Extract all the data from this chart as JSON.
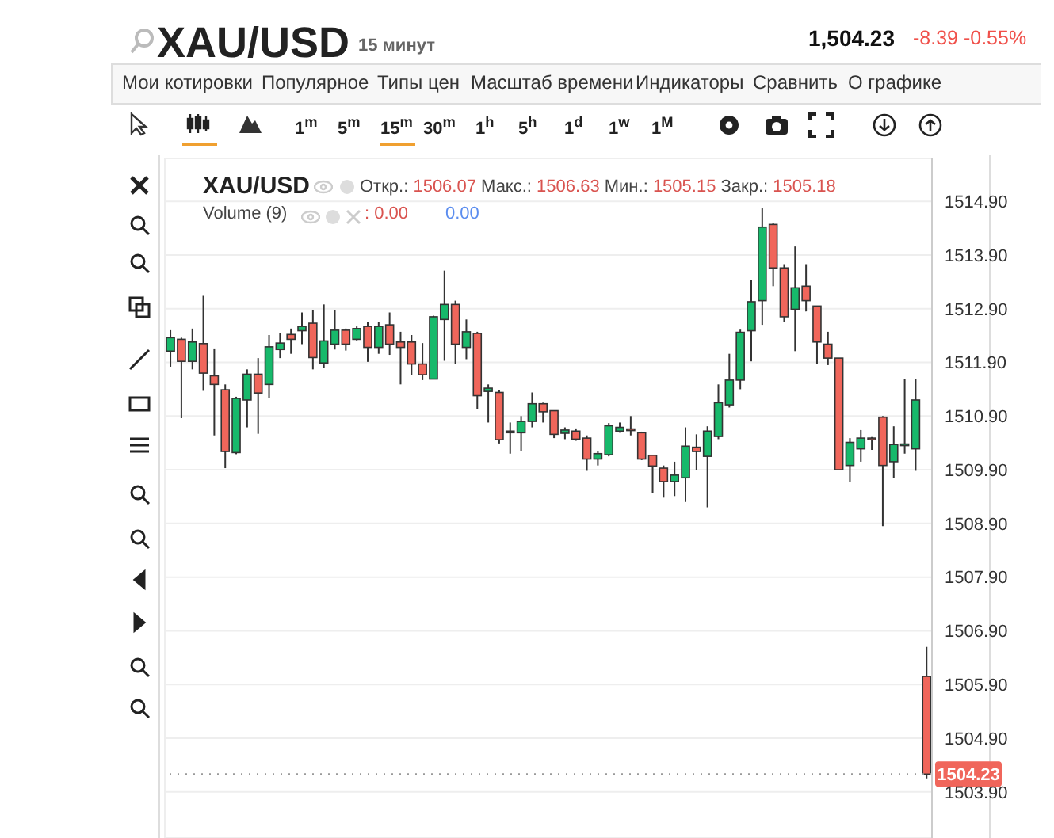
{
  "chart_data": {
    "type": "candlestick",
    "title": "XAU/USD",
    "subtitle": "15 минут",
    "annotations": [
      "1,504.23",
      "-8.39 -0.55%",
      "Мои котировки",
      "Популярное",
      "Типы цен",
      "Масштаб времени",
      "Индикаторы",
      "Сравнить",
      "О графике",
      "1$^{m}$",
      "5$^{m}$",
      "15$^{m}$",
      "30$^{m}$",
      "1$^{h}$",
      "5$^{h}$",
      "1$^{d}$",
      "1$^{w}$",
      "1$^{M}$",
      "XAU/USD",
      "Откр.: 1506.07 Макс.: 1506.63 Мин.: 1505.15 Закр.: 1505.18",
      "Volume (9)",
      ": 0.00",
      "0.00"
    ],
    "categories": [
      null,
      null,
      null,
      null,
      null,
      null,
      null,
      null,
      null,
      null,
      null,
      null,
      null,
      null,
      null,
      null,
      null,
      null,
      null,
      null,
      null,
      null,
      null,
      null,
      null,
      null,
      null,
      null,
      null,
      null,
      null,
      null,
      null,
      null,
      null,
      null,
      null,
      null,
      null,
      null,
      null,
      null,
      null,
      null,
      null,
      null,
      null,
      null,
      null,
      null,
      null,
      null,
      null,
      null,
      null,
      null,
      null,
      null,
      null,
      null,
      null,
      null,
      null,
      null,
      null,
      null,
      null,
      null,
      null,
      null
    ],
    "ohlc": [
      [
        1512.11,
        1512.5,
        1511.82,
        1512.36
      ],
      [
        1512.33,
        1512.36,
        1510.86,
        1511.92
      ],
      [
        1511.92,
        1512.53,
        1511.77,
        1512.28
      ],
      [
        1512.25,
        1513.14,
        1511.37,
        1511.7
      ],
      [
        1511.65,
        1512.16,
        1510.54,
        1511.49
      ],
      [
        1511.39,
        1511.49,
        1509.93,
        1510.24
      ],
      [
        1510.22,
        1511.26,
        1510.19,
        1511.23
      ],
      [
        1511.2,
        1511.77,
        1510.69,
        1511.68
      ],
      [
        1511.68,
        1511.98,
        1510.57,
        1511.33
      ],
      [
        1511.49,
        1512.41,
        1511.23,
        1512.19
      ],
      [
        1512.14,
        1512.44,
        1511.98,
        1512.26
      ],
      [
        1512.42,
        1512.53,
        1512.06,
        1512.33
      ],
      [
        1512.49,
        1512.83,
        1512.24,
        1512.57
      ],
      [
        1512.63,
        1512.88,
        1511.77,
        1511.99
      ],
      [
        1511.89,
        1512.98,
        1511.79,
        1512.3
      ],
      [
        1512.24,
        1512.87,
        1512.14,
        1512.5
      ],
      [
        1512.5,
        1512.53,
        1512.12,
        1512.24
      ],
      [
        1512.33,
        1512.57,
        1512.31,
        1512.53
      ],
      [
        1512.57,
        1512.65,
        1511.91,
        1512.18
      ],
      [
        1512.18,
        1512.65,
        1512.06,
        1512.57
      ],
      [
        1512.6,
        1512.83,
        1512.04,
        1512.24
      ],
      [
        1512.28,
        1512.47,
        1511.49,
        1512.18
      ],
      [
        1512.28,
        1512.41,
        1511.67,
        1511.87
      ],
      [
        1511.87,
        1512.26,
        1511.57,
        1511.67
      ],
      [
        1511.59,
        1512.77,
        1511.59,
        1512.75
      ],
      [
        1512.7,
        1513.61,
        1511.93,
        1512.98
      ],
      [
        1512.98,
        1513.05,
        1511.87,
        1512.24
      ],
      [
        1512.18,
        1512.7,
        1511.96,
        1512.47
      ],
      [
        1512.44,
        1512.47,
        1511.03,
        1511.28
      ],
      [
        1511.36,
        1511.49,
        1510.78,
        1511.42
      ],
      [
        1511.34,
        1511.38,
        1510.39,
        1510.46
      ],
      [
        1510.62,
        1510.78,
        1510.2,
        1510.6
      ],
      [
        1510.59,
        1510.9,
        1510.24,
        1510.8
      ],
      [
        1510.8,
        1511.34,
        1510.69,
        1511.13
      ],
      [
        1511.13,
        1511.15,
        1510.78,
        1510.98
      ],
      [
        1511,
        1511,
        1510.49,
        1510.56
      ],
      [
        1510.58,
        1510.69,
        1510.47,
        1510.64
      ],
      [
        1510.62,
        1510.67,
        1510.44,
        1510.47
      ],
      [
        1510.49,
        1510.54,
        1509.88,
        1510.1
      ],
      [
        1510.1,
        1510.24,
        1509.98,
        1510.2
      ],
      [
        1510.18,
        1510.77,
        1510.15,
        1510.72
      ],
      [
        1510.62,
        1510.78,
        1510.59,
        1510.69
      ],
      [
        1510.66,
        1510.9,
        1510.54,
        1510.65
      ],
      [
        1510.59,
        1510.61,
        1510.08,
        1510.1
      ],
      [
        1510.17,
        1510.18,
        1509.46,
        1509.97
      ],
      [
        1509.93,
        1509.98,
        1509.38,
        1509.68
      ],
      [
        1509.68,
        1510.05,
        1509.41,
        1509.8
      ],
      [
        1509.75,
        1510.69,
        1509.3,
        1510.34
      ],
      [
        1510.32,
        1510.56,
        1509.9,
        1510.24
      ],
      [
        1510.15,
        1510.71,
        1509.2,
        1510.62
      ],
      [
        1510.52,
        1511.49,
        1510.47,
        1511.15
      ],
      [
        1511.11,
        1512.06,
        1511.06,
        1511.57
      ],
      [
        1511.57,
        1512.51,
        1511.4,
        1512.46
      ],
      [
        1512.49,
        1513.44,
        1511.92,
        1513.03
      ],
      [
        1513.05,
        1514.77,
        1512.6,
        1514.42
      ],
      [
        1514.47,
        1514.5,
        1513.32,
        1513.66
      ],
      [
        1513.66,
        1513.73,
        1512.65,
        1512.75
      ],
      [
        1512.89,
        1514.06,
        1512.11,
        1513.29
      ],
      [
        1513.32,
        1513.73,
        1512.85,
        1513.05
      ],
      [
        1512.95,
        1512.95,
        1511.87,
        1512.28
      ],
      [
        1512.24,
        1512.47,
        1511.85,
        1511.98
      ],
      [
        1511.98,
        1511.98,
        1509.9,
        1509.9
      ],
      [
        1509.98,
        1510.49,
        1509.68,
        1510.41
      ],
      [
        1510.29,
        1510.64,
        1510.05,
        1510.49
      ],
      [
        1510.49,
        1510.51,
        1510.27,
        1510.46
      ],
      [
        1510.88,
        1510.9,
        1508.85,
        1509.98
      ],
      [
        1510.05,
        1510.71,
        1509.75,
        1510.37
      ],
      [
        1510.36,
        1511.59,
        1510.2,
        1510.38
      ],
      [
        1510.29,
        1511.59,
        1509.88,
        1511.2
      ],
      [
        1506.05,
        1506.6,
        1504.15,
        1504.23
      ]
    ],
    "colors": [
      "#17b96b",
      "#f0665b",
      "#17b96b",
      "#f0665b",
      "#f0665b",
      "#f0665b",
      "#17b96b",
      "#17b96b",
      "#f0665b",
      "#17b96b",
      "#17b96b",
      "#f0665b",
      "#17b96b",
      "#f0665b",
      "#17b96b",
      "#17b96b",
      "#f0665b",
      "#17b96b",
      "#f0665b",
      "#17b96b",
      "#f0665b",
      "#f0665b",
      "#f0665b",
      "#f0665b",
      "#17b96b",
      "#17b96b",
      "#f0665b",
      "#17b96b",
      "#f0665b",
      "#17b96b",
      "#f0665b",
      "#f0665b",
      "#17b96b",
      "#17b96b",
      "#f0665b",
      "#f0665b",
      "#17b96b",
      "#f0665b",
      "#f0665b",
      "#17b96b",
      "#17b96b",
      "#17b96b",
      "#f0665b",
      "#f0665b",
      "#f0665b",
      "#f0665b",
      "#17b96b",
      "#17b96b",
      "#f0665b",
      "#17b96b",
      "#17b96b",
      "#17b96b",
      "#17b96b",
      "#17b96b",
      "#17b96b",
      "#f0665b",
      "#f0665b",
      "#17b96b",
      "#f0665b",
      "#f0665b",
      "#f0665b",
      "#f0665b",
      "#17b96b",
      "#17b96b",
      "#f0665b",
      "#f0665b",
      "#17b96b",
      "#17b96b",
      "#17b96b",
      "#f0665b"
    ],
    "ylim": [
      1503.04,
      1515.7
    ],
    "yticks": [
      {
        "value": 1503.9,
        "label": "1503.90"
      },
      {
        "value": 1504.9,
        "label": "1504.90"
      },
      {
        "value": 1505.9,
        "label": "1505.90"
      },
      {
        "value": 1506.9,
        "label": "1506.90"
      },
      {
        "value": 1507.9,
        "label": "1507.90"
      },
      {
        "value": 1508.9,
        "label": "1508.90"
      },
      {
        "value": 1509.9,
        "label": "1509.90"
      },
      {
        "value": 1510.9,
        "label": "1510.90"
      },
      {
        "value": 1511.9,
        "label": "1511.90"
      },
      {
        "value": 1512.9,
        "label": "1512.90"
      },
      {
        "value": 1513.9,
        "label": "1513.90"
      },
      {
        "value": 1514.9,
        "label": "1514.90"
      }
    ],
    "ref_lines": [
      {
        "axis": "y",
        "value": 1504.23,
        "label": "1504.23",
        "color": "#999999",
        "line_style": "dotted"
      }
    ],
    "grid": true,
    "tick_labels": "y"
  }
}
